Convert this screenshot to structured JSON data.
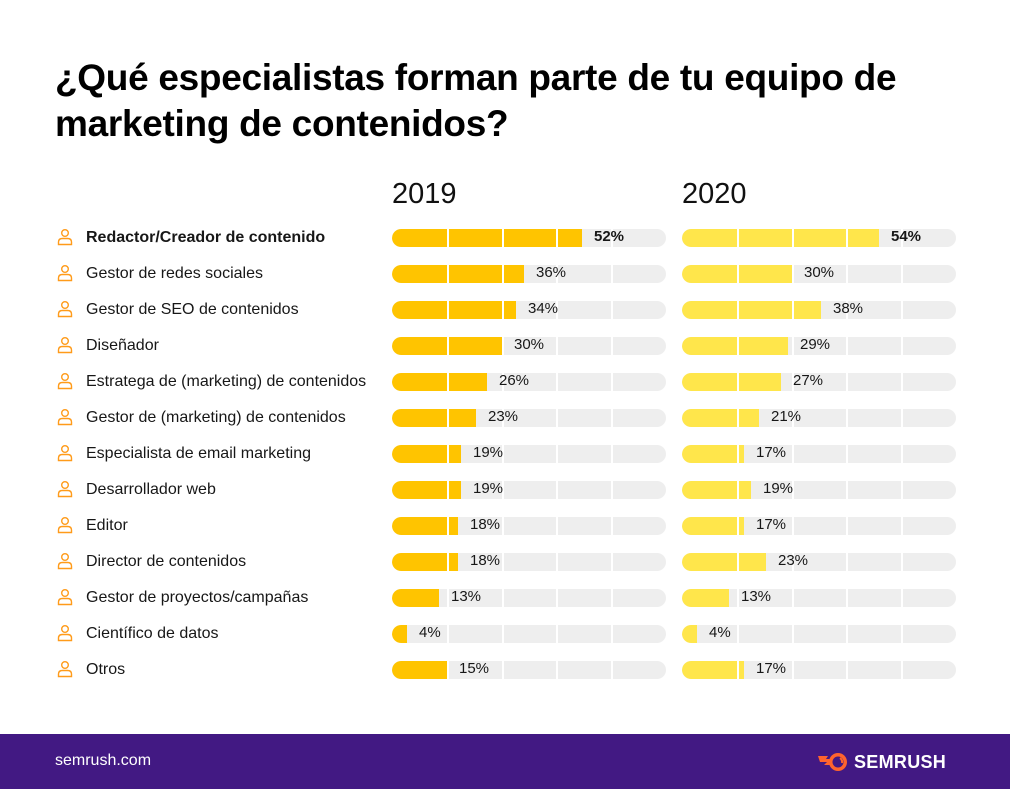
{
  "title": "¿Qué especialistas forman parte de tu equipo de marketing de contenidos?",
  "footer": {
    "site": "semrush.com",
    "brand": "SEMRUSH"
  },
  "colors": {
    "y2019": "#FFC400",
    "y2020": "#FFE64B",
    "track": "#EEEEEE",
    "icon": "#FF9B1A",
    "footer_bg": "#421983",
    "brand_orange": "#FF642D"
  },
  "chart_data": {
    "type": "bar",
    "title": "¿Qué especialistas forman parte de tu equipo de marketing de contenidos?",
    "orientation": "horizontal",
    "xlabel": "",
    "ylabel": "",
    "unit": "%",
    "xlim": [
      0,
      75
    ],
    "grid": true,
    "categories": [
      "Redactor/Creador de contenido",
      "Gestor de redes sociales",
      "Gestor de SEO de contenidos",
      "Diseñador",
      "Estratega de (marketing) de contenidos",
      "Gestor de (marketing) de contenidos",
      "Especialista de email marketing",
      "Desarrollador web",
      "Editor",
      "Director de contenidos",
      "Gestor de proyectos/campañas",
      "Científico de datos",
      "Otros"
    ],
    "series": [
      {
        "name": "2019",
        "values": [
          52,
          36,
          34,
          30,
          26,
          23,
          19,
          19,
          18,
          18,
          13,
          4,
          15
        ]
      },
      {
        "name": "2020",
        "values": [
          54,
          30,
          38,
          29,
          27,
          21,
          17,
          19,
          17,
          23,
          13,
          4,
          17
        ]
      }
    ],
    "labels": {
      "2019": [
        "52%",
        "36%",
        "34%",
        "30%",
        "26%",
        "23%",
        "19%",
        "19%",
        "18%",
        "18%",
        "13%",
        "4%",
        "15%"
      ],
      "2020": [
        "54%",
        "30%",
        "38%",
        "29%",
        "27%",
        "21%",
        "17%",
        "19%",
        "17%",
        "23%",
        "13%",
        "4%",
        "17%"
      ]
    },
    "highlighted_category": "Redactor/Creador de contenido"
  }
}
